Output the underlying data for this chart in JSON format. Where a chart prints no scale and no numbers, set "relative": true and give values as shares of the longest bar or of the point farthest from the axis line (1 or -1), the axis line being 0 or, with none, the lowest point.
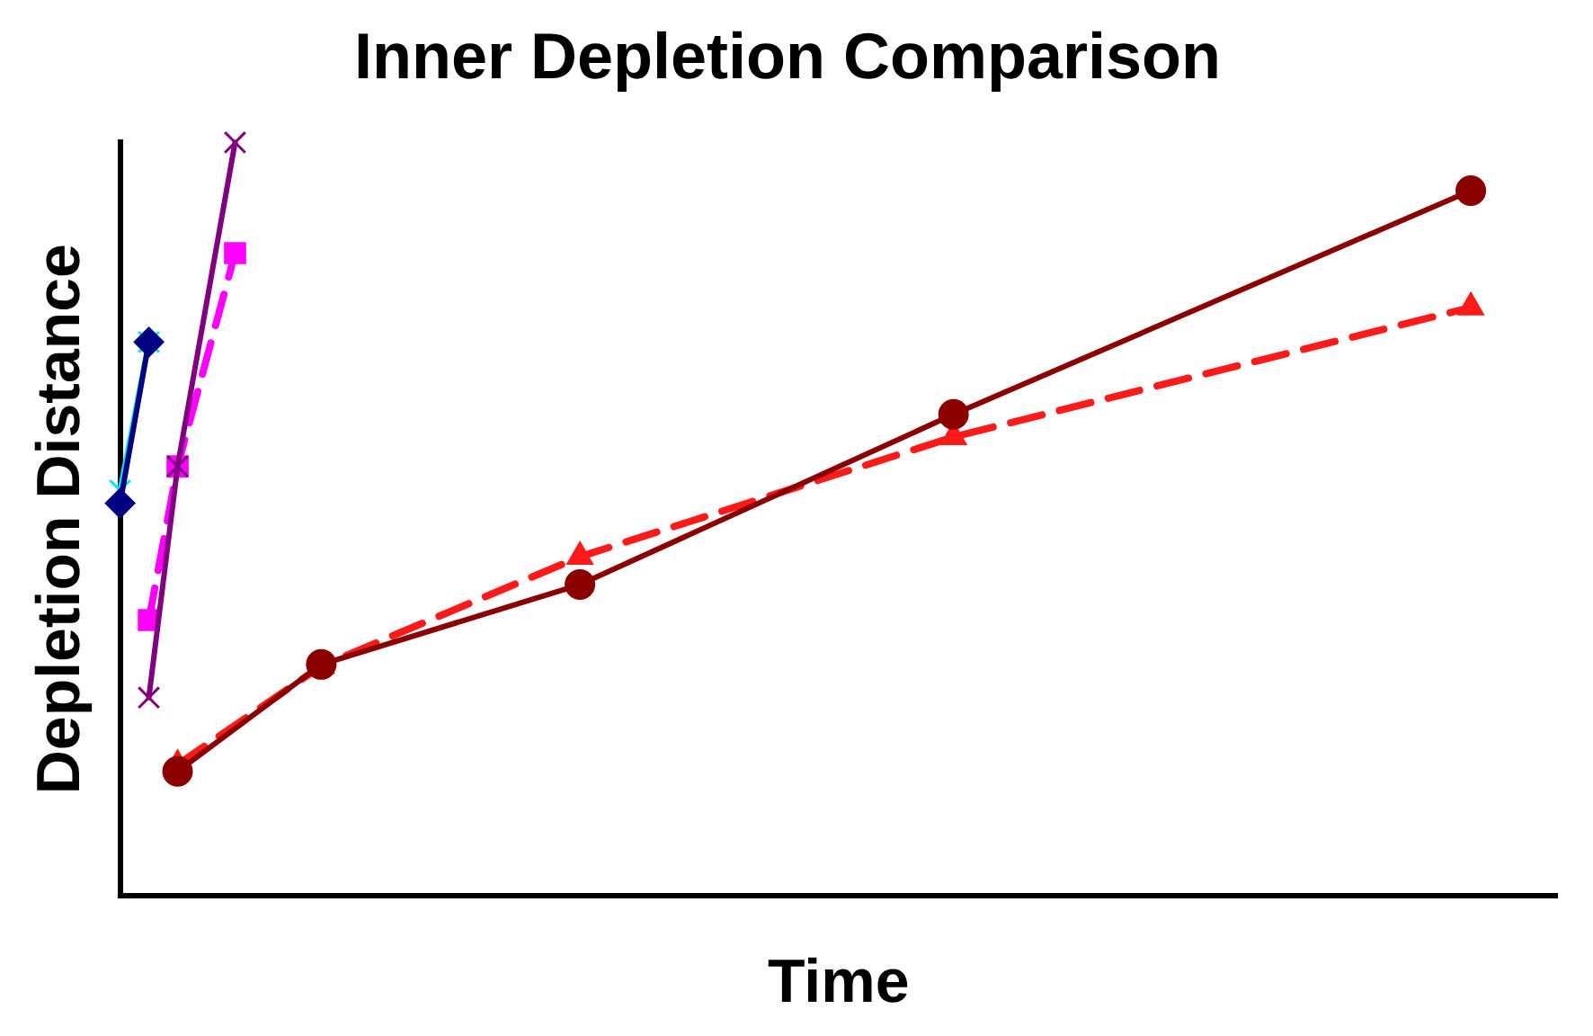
{
  "chart_data": {
    "type": "line",
    "title": "Inner Depletion Comparison",
    "xlabel": "Time",
    "ylabel": "Depletion Distance",
    "relative": true,
    "grid": false,
    "legend": false,
    "categories": [
      null,
      null,
      null,
      null,
      null,
      null,
      null,
      null,
      null,
      null,
      null,
      null,
      null,
      null,
      null,
      null,
      null,
      null,
      null,
      null,
      null,
      null,
      null,
      null,
      null,
      null,
      null,
      null,
      null,
      null,
      null,
      null,
      null,
      null,
      null,
      null,
      null,
      null,
      null,
      null,
      null,
      null,
      null,
      null,
      null,
      null,
      null,
      null,
      null,
      null,
      null
    ],
    "series": [
      {
        "color": "#8b0000",
        "marker": "circle",
        "line_style": "solid",
        "values": [
          null,
          null,
          0.165,
          null,
          null,
          null,
          null,
          0.307,
          null,
          null,
          null,
          null,
          null,
          null,
          null,
          null,
          0.413,
          null,
          null,
          null,
          null,
          null,
          null,
          null,
          null,
          null,
          null,
          null,
          null,
          0.639,
          null,
          null,
          null,
          null,
          null,
          null,
          null,
          null,
          null,
          null,
          null,
          null,
          null,
          null,
          null,
          null,
          null,
          0.936,
          null,
          null,
          null
        ]
      },
      {
        "color": "#ff1a1a",
        "marker": "triangle",
        "line_style": "dashed",
        "values": [
          null,
          null,
          0.174,
          null,
          null,
          null,
          null,
          0.305,
          null,
          null,
          null,
          null,
          null,
          null,
          null,
          null,
          0.45,
          null,
          null,
          null,
          null,
          null,
          null,
          null,
          null,
          null,
          null,
          null,
          null,
          0.609,
          null,
          null,
          null,
          null,
          null,
          null,
          null,
          null,
          null,
          null,
          null,
          null,
          null,
          null,
          null,
          null,
          null,
          0.781,
          null,
          null,
          null
        ]
      },
      {
        "color": "#800080",
        "marker": "cross",
        "line_style": "solid",
        "values": [
          null,
          0.263,
          0.57,
          null,
          1,
          null,
          null,
          null,
          null,
          null,
          null,
          null,
          null,
          null,
          null,
          null,
          null,
          null,
          null,
          null,
          null,
          null,
          null,
          null,
          null,
          null,
          null,
          null,
          null,
          null,
          null,
          null,
          null,
          null,
          null,
          null,
          null,
          null,
          null,
          null,
          null,
          null,
          null,
          null,
          null,
          null,
          null,
          null,
          null,
          null,
          null
        ]
      },
      {
        "color": "#ff00ff",
        "marker": "square",
        "line_style": "dashed",
        "values": [
          null,
          0.366,
          0.57,
          null,
          0.853,
          null,
          null,
          null,
          null,
          null,
          null,
          null,
          null,
          null,
          null,
          null,
          null,
          null,
          null,
          null,
          null,
          null,
          null,
          null,
          null,
          null,
          null,
          null,
          null,
          null,
          null,
          null,
          null,
          null,
          null,
          null,
          null,
          null,
          null,
          null,
          null,
          null,
          null,
          null,
          null,
          null,
          null,
          null,
          null,
          null,
          null
        ]
      },
      {
        "color": "#000080",
        "marker": "diamond",
        "line_style": "solid",
        "values": [
          0.521,
          0.735,
          null,
          null,
          null,
          null,
          null,
          null,
          null,
          null,
          null,
          null,
          null,
          null,
          null,
          null,
          null,
          null,
          null,
          null,
          null,
          null,
          null,
          null,
          null,
          null,
          null,
          null,
          null,
          null,
          null,
          null,
          null,
          null,
          null,
          null,
          null,
          null,
          null,
          null,
          null,
          null,
          null,
          null,
          null,
          null,
          null,
          null,
          null,
          null,
          null
        ]
      },
      {
        "color": "#00e5ee",
        "marker": "cross",
        "line_style": "solid",
        "values": [
          0.538,
          0.735,
          null,
          null,
          null,
          null,
          null,
          null,
          null,
          null,
          null,
          null,
          null,
          null,
          null,
          null,
          null,
          null,
          null,
          null,
          null,
          null,
          null,
          null,
          null,
          null,
          null,
          null,
          null,
          null,
          null,
          null,
          null,
          null,
          null,
          null,
          null,
          null,
          null,
          null,
          null,
          null,
          null,
          null,
          null,
          null,
          null,
          null,
          null,
          null,
          null
        ]
      }
    ]
  }
}
